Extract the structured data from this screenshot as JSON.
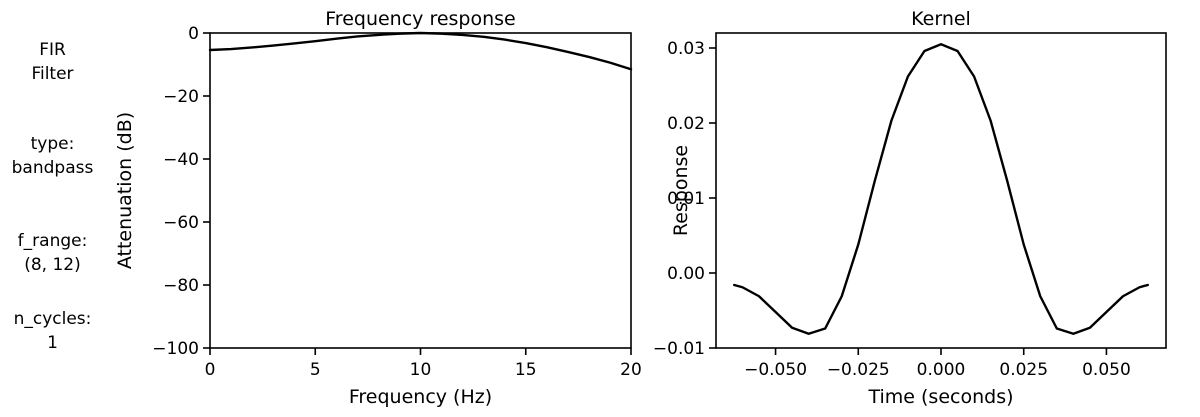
{
  "sidebar": {
    "filter_title": [
      "FIR",
      "Filter"
    ],
    "type_param": [
      "type:",
      "bandpass"
    ],
    "f_range_param": [
      "f_range:",
      "(8, 12)"
    ],
    "n_cycles_param": [
      "n_cycles:",
      "1"
    ]
  },
  "chart_data": [
    {
      "type": "line",
      "title": "Frequency response",
      "xlabel": "Frequency (Hz)",
      "ylabel": "Attenuation (dB)",
      "xlim": [
        0,
        20
      ],
      "ylim": [
        -100,
        0
      ],
      "xticks": [
        0,
        5,
        10,
        15,
        20
      ],
      "yticks": [
        -100,
        -80,
        -60,
        -40,
        -20,
        0
      ],
      "grid": false,
      "series": [
        {
          "x": [
            0,
            1,
            2,
            3,
            4,
            5,
            6,
            7,
            8,
            9,
            10,
            11,
            12,
            13,
            14,
            15,
            16,
            17,
            18,
            19,
            20
          ],
          "y": [
            -5.4,
            -5.1,
            -4.6,
            -4.0,
            -3.3,
            -2.6,
            -1.8,
            -1.1,
            -0.6,
            -0.2,
            0.0,
            -0.2,
            -0.6,
            -1.2,
            -2.1,
            -3.2,
            -4.5,
            -6.0,
            -7.6,
            -9.4,
            -11.5
          ]
        }
      ]
    },
    {
      "type": "line",
      "title": "Kernel",
      "xlabel": "Time (seconds)",
      "ylabel": "Response",
      "xlim": [
        -0.068,
        0.068
      ],
      "ylim": [
        -0.01,
        0.032
      ],
      "xticks": [
        -0.05,
        -0.025,
        0.0,
        0.025,
        0.05
      ],
      "xtick_labels": [
        "−0.050",
        "−0.025",
        "0.000",
        "0.025",
        "0.050"
      ],
      "yticks": [
        -0.01,
        0.0,
        0.01,
        0.02,
        0.03
      ],
      "ytick_labels": [
        "−0.01",
        "0.00",
        "0.01",
        "0.02",
        "0.03"
      ],
      "grid": false,
      "series": [
        {
          "x": [
            -0.0625,
            -0.06,
            -0.055,
            -0.05,
            -0.045,
            -0.04,
            -0.035,
            -0.03,
            -0.025,
            -0.02,
            -0.015,
            -0.01,
            -0.005,
            0.0,
            0.005,
            0.01,
            0.015,
            0.02,
            0.025,
            0.03,
            0.035,
            0.04,
            0.045,
            0.05,
            0.055,
            0.06,
            0.0625
          ],
          "y": [
            -0.0016,
            -0.0019,
            -0.0031,
            -0.0052,
            -0.0073,
            -0.0081,
            -0.0074,
            -0.0031,
            0.0038,
            0.0123,
            0.0203,
            0.0262,
            0.0296,
            0.0305,
            0.0296,
            0.0262,
            0.0203,
            0.0123,
            0.0038,
            -0.0031,
            -0.0074,
            -0.0081,
            -0.0073,
            -0.0052,
            -0.0031,
            -0.0019,
            -0.0016
          ]
        }
      ]
    }
  ]
}
